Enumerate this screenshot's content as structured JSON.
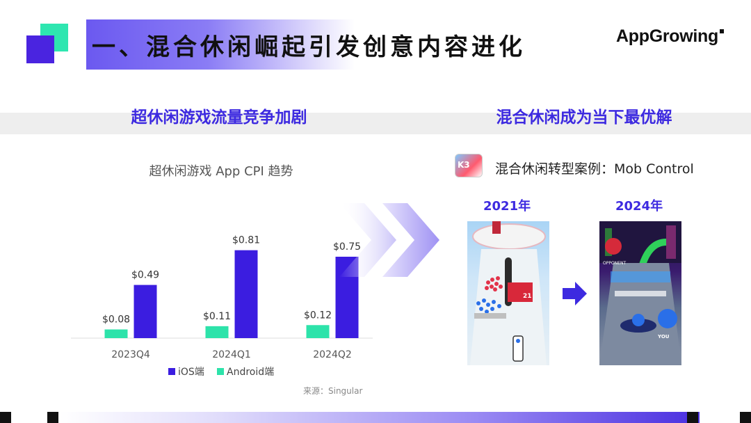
{
  "header": {
    "title": "一、混合休闲崛起引发创意内容进化",
    "brand": "AppGrowing"
  },
  "sections": {
    "left": "超休闲游戏流量竞争加剧",
    "right": "混合休闲成为当下最优解"
  },
  "chart_data": {
    "type": "bar",
    "title": "超休闲游戏 App CPI 趋势",
    "categories": [
      "2023Q4",
      "2024Q1",
      "2024Q2"
    ],
    "series": [
      {
        "name": "iOS端",
        "values": [
          0.49,
          0.81,
          0.75
        ],
        "labels": [
          "$0.49",
          "$0.81",
          "$0.75"
        ],
        "color": "#3b1de0"
      },
      {
        "name": "Android端",
        "values": [
          0.08,
          0.11,
          0.12
        ],
        "labels": [
          "$0.08",
          "$0.11",
          "$0.12"
        ],
        "color": "#2de3aa"
      }
    ],
    "ylim": [
      0,
      1.0
    ],
    "grid": false,
    "legend": "bottom",
    "source": "来源：Singular"
  },
  "case_study": {
    "label": "混合休闲转型案例：Mob Control",
    "years": [
      "2021年",
      "2024年"
    ],
    "screenshot_2021_text": "21",
    "screenshot_2024_labels": [
      "OPPONENT",
      "YOU"
    ]
  },
  "colors": {
    "accent": "#3d2ae0",
    "green": "#2ee6b0",
    "purple": "#4a24e0"
  }
}
